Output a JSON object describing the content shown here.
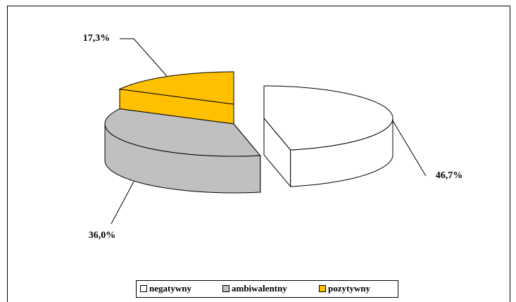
{
  "chart_data": {
    "type": "pie3d",
    "categories": [
      "negatywny",
      "ambiwalentny",
      "pozytywny"
    ],
    "values": [
      46.7,
      36.0,
      17.3
    ],
    "value_labels": [
      "46,7%",
      "36,0%",
      "17,3%"
    ],
    "colors": [
      "#ffffff",
      "#c0c0c0",
      "#ffc000"
    ],
    "legend": "bottom"
  }
}
